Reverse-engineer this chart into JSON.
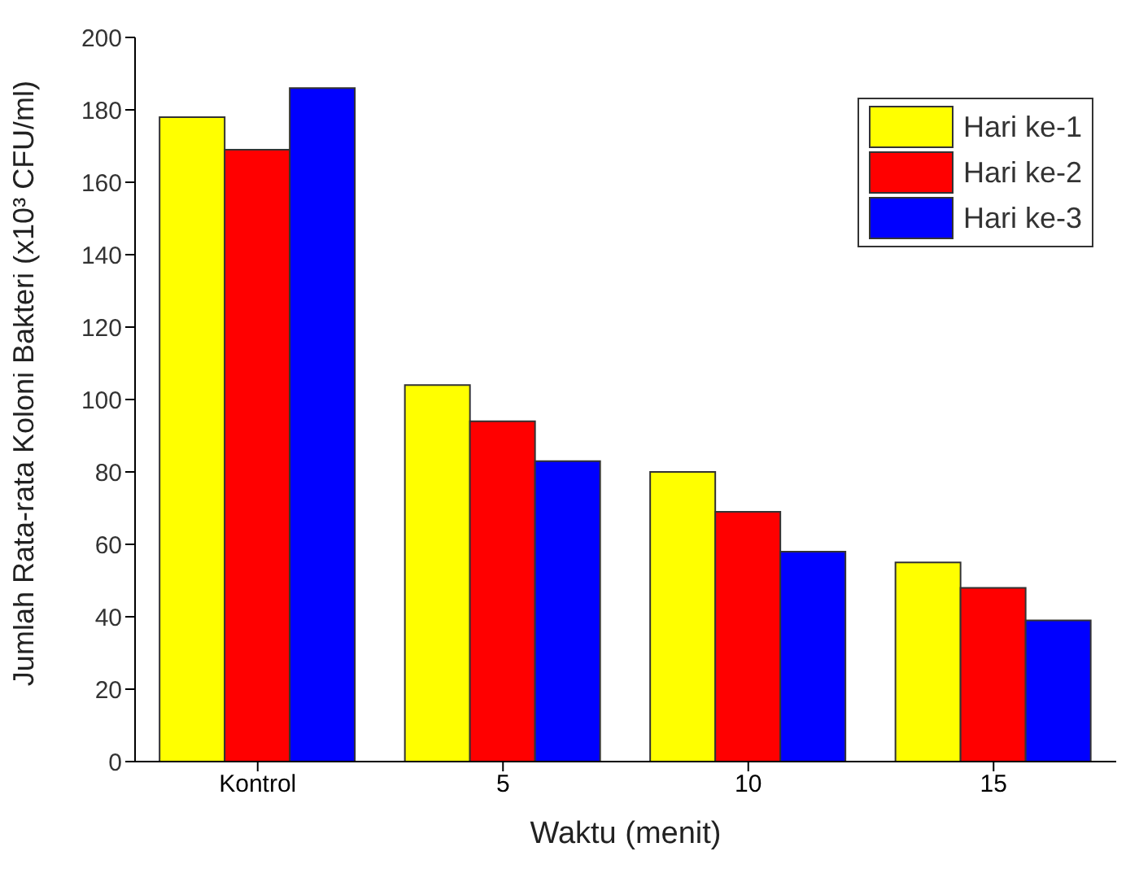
{
  "chart_data": {
    "type": "bar",
    "xlabel": "Waktu (menit)",
    "ylabel": "Jumlah Rata-rata Koloni Bakteri (x10³ CFU/ml)",
    "categories": [
      "Kontrol",
      "5",
      "10",
      "15"
    ],
    "series": [
      {
        "name": "Hari ke-1",
        "color": "#ffff00",
        "values": [
          178,
          104,
          80,
          55
        ]
      },
      {
        "name": "Hari ke-2",
        "color": "#ff0000",
        "values": [
          169,
          94,
          69,
          48
        ]
      },
      {
        "name": "Hari ke-3",
        "color": "#0000ff",
        "values": [
          186,
          83,
          58,
          39
        ]
      }
    ],
    "ylim": [
      0,
      200
    ],
    "yticks": [
      0,
      20,
      40,
      60,
      80,
      100,
      120,
      140,
      160,
      180,
      200
    ],
    "grid": false,
    "legend": "top right"
  }
}
